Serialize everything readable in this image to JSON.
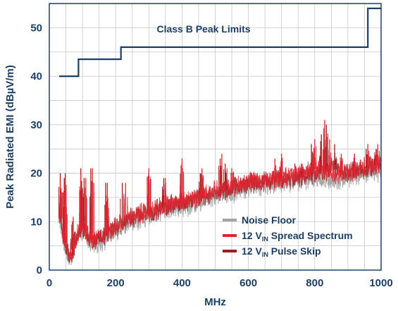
{
  "chart_data": {
    "type": "line",
    "xlabel": "MHz",
    "ylabel": "Peak Radiated EMI (dBµV/m)",
    "xlim": [
      0,
      1000
    ],
    "ylim": [
      0,
      55
    ],
    "x_ticks": [
      0,
      200,
      400,
      600,
      800,
      1000
    ],
    "y_ticks": [
      0,
      10,
      20,
      30,
      40,
      50
    ],
    "grid": true,
    "legend_position": "bottom-right",
    "colors": {
      "limit": "#1d3f63",
      "axis_text": "#1d3f63",
      "noise_floor": "#a3a3a3",
      "spread_spectrum": "#e2222e",
      "pulse_skip": "#9b1d22",
      "grid": "#c8c8c8"
    },
    "annotation": "Class B Peak Limits",
    "limit_line": {
      "x": [
        30,
        88,
        88,
        216,
        216,
        960,
        960,
        1000
      ],
      "y": [
        40,
        40,
        43.5,
        43.5,
        46,
        46,
        54,
        54
      ]
    },
    "series": [
      {
        "name": "Noise Floor",
        "x": [
          30,
          40,
          50,
          60,
          70,
          80,
          100,
          130,
          160,
          200,
          250,
          300,
          350,
          400,
          450,
          500,
          550,
          600,
          650,
          700,
          750,
          800,
          850,
          900,
          950,
          1000
        ],
        "y": [
          11,
          7,
          4,
          2.5,
          3,
          6,
          8,
          5,
          6,
          8,
          10,
          11,
          12.5,
          13,
          14,
          15.5,
          16,
          17,
          17.5,
          18,
          18.5,
          19,
          18.5,
          19,
          20,
          20.5
        ],
        "peaks": [
          [
            33,
            15
          ],
          [
            50,
            7
          ],
          [
            95,
            14
          ],
          [
            110,
            13
          ],
          [
            175,
            12
          ],
          [
            300,
            13
          ],
          [
            410,
            15
          ],
          [
            520,
            19
          ],
          [
            700,
            21
          ],
          [
            830,
            21
          ],
          [
            900,
            21
          ],
          [
            960,
            22
          ],
          [
            995,
            22
          ]
        ]
      },
      {
        "name": "12 V_IN Spread Spectrum",
        "x": [
          30,
          40,
          50,
          60,
          70,
          80,
          100,
          130,
          160,
          200,
          250,
          300,
          350,
          400,
          450,
          500,
          550,
          600,
          650,
          700,
          750,
          800,
          850,
          900,
          950,
          1000
        ],
        "y": [
          12,
          8,
          5,
          3,
          3.5,
          7,
          9,
          6,
          7,
          9,
          11,
          12,
          13.5,
          14,
          15,
          16.5,
          17,
          18,
          18.5,
          19,
          19.5,
          21,
          20,
          20,
          21,
          22
        ],
        "peaks": [
          [
            33,
            19
          ],
          [
            48,
            20
          ],
          [
            72,
            11
          ],
          [
            95,
            20
          ],
          [
            110,
            19
          ],
          [
            130,
            21
          ],
          [
            175,
            18
          ],
          [
            230,
            18
          ],
          [
            300,
            21
          ],
          [
            350,
            19
          ],
          [
            400,
            23
          ],
          [
            460,
            21
          ],
          [
            520,
            24
          ],
          [
            550,
            21
          ],
          [
            620,
            20
          ],
          [
            680,
            23
          ],
          [
            700,
            24
          ],
          [
            740,
            22
          ],
          [
            800,
            27
          ],
          [
            830,
            31
          ],
          [
            845,
            27
          ],
          [
            880,
            24
          ],
          [
            920,
            24
          ],
          [
            960,
            26
          ],
          [
            990,
            26
          ]
        ]
      },
      {
        "name": "12 V_IN Pulse Skip",
        "x": [
          30,
          40,
          50,
          60,
          70,
          80,
          100,
          130,
          160,
          200,
          250,
          300,
          350,
          400,
          450,
          500,
          550,
          600,
          650,
          700,
          750,
          800,
          850,
          900,
          950,
          1000
        ],
        "y": [
          12,
          7.5,
          4.5,
          2.5,
          3,
          7,
          9,
          6,
          6.5,
          9,
          11,
          12,
          13,
          14,
          15,
          16,
          17,
          18,
          18.5,
          19,
          19,
          20,
          21,
          20,
          21,
          22
        ],
        "peaks": [
          [
            33,
            20
          ],
          [
            45,
            19
          ],
          [
            70,
            10
          ],
          [
            95,
            21
          ],
          [
            105,
            19
          ],
          [
            125,
            21
          ],
          [
            170,
            18
          ],
          [
            220,
            18
          ],
          [
            300,
            20
          ],
          [
            345,
            19
          ],
          [
            400,
            22
          ],
          [
            455,
            20
          ],
          [
            515,
            23
          ],
          [
            530,
            22
          ],
          [
            610,
            20
          ],
          [
            700,
            23
          ],
          [
            760,
            22
          ],
          [
            790,
            26
          ],
          [
            820,
            28
          ],
          [
            835,
            30
          ],
          [
            860,
            26
          ],
          [
            920,
            24
          ],
          [
            955,
            25
          ],
          [
            985,
            25
          ]
        ]
      }
    ],
    "legend": [
      {
        "label": "Noise Floor",
        "sub": "",
        "rest": ""
      },
      {
        "label": "12 V",
        "sub": "IN",
        "rest": " Spread Spectrum"
      },
      {
        "label": "12 V",
        "sub": "IN",
        "rest": " Pulse Skip"
      }
    ]
  }
}
